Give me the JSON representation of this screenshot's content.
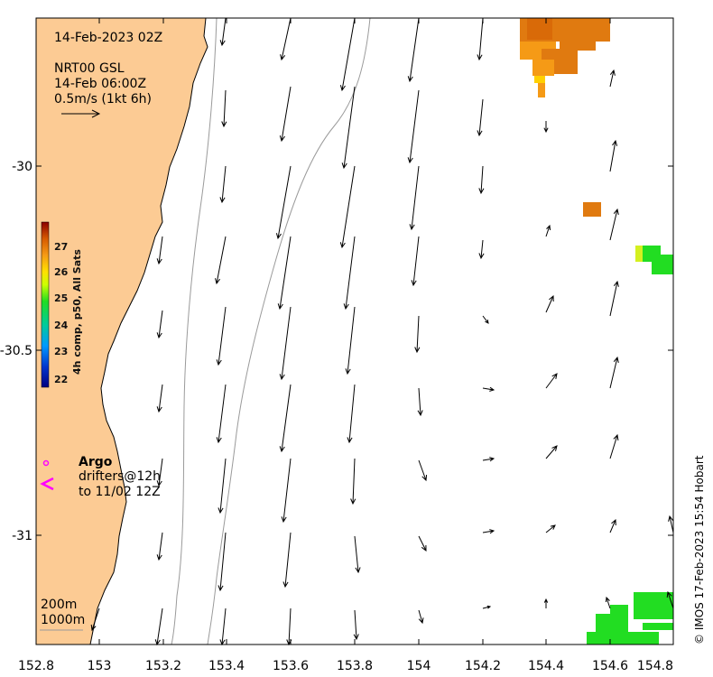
{
  "map": {
    "date_title": "14-Feb-2023 02Z",
    "product": "NRT00 GSL",
    "product_time": "14-Feb 06:00Z",
    "scale_label": "0.5m/s (1kt 6h)",
    "x_ticks": [
      "152.8",
      "153",
      "153.2",
      "153.4",
      "153.6",
      "153.8",
      "154",
      "154.2",
      "154.4",
      "154.6",
      "154.8"
    ],
    "y_ticks": [
      "-30",
      "-30.5",
      "-31"
    ],
    "colorbar": {
      "title": "4h comp, p50, All Sats",
      "ticks": [
        "27",
        "26",
        "25",
        "24",
        "23",
        "22"
      ],
      "range": [
        22,
        28
      ]
    },
    "legend": {
      "argo_label": "Argo",
      "drifters_label": "drifters@12h",
      "drifters_to": "to 11/02 12Z"
    },
    "isobaths": [
      "200m",
      "1000m"
    ],
    "credit": "© IMOS 17-Feb-2023 15:54 Hobart",
    "colors": {
      "land": "#FCCB94",
      "argo": "#FF00FF",
      "sst_warm": "#E07A10",
      "sst_orange": "#F59A16",
      "sst_green": "#22DD22"
    }
  }
}
